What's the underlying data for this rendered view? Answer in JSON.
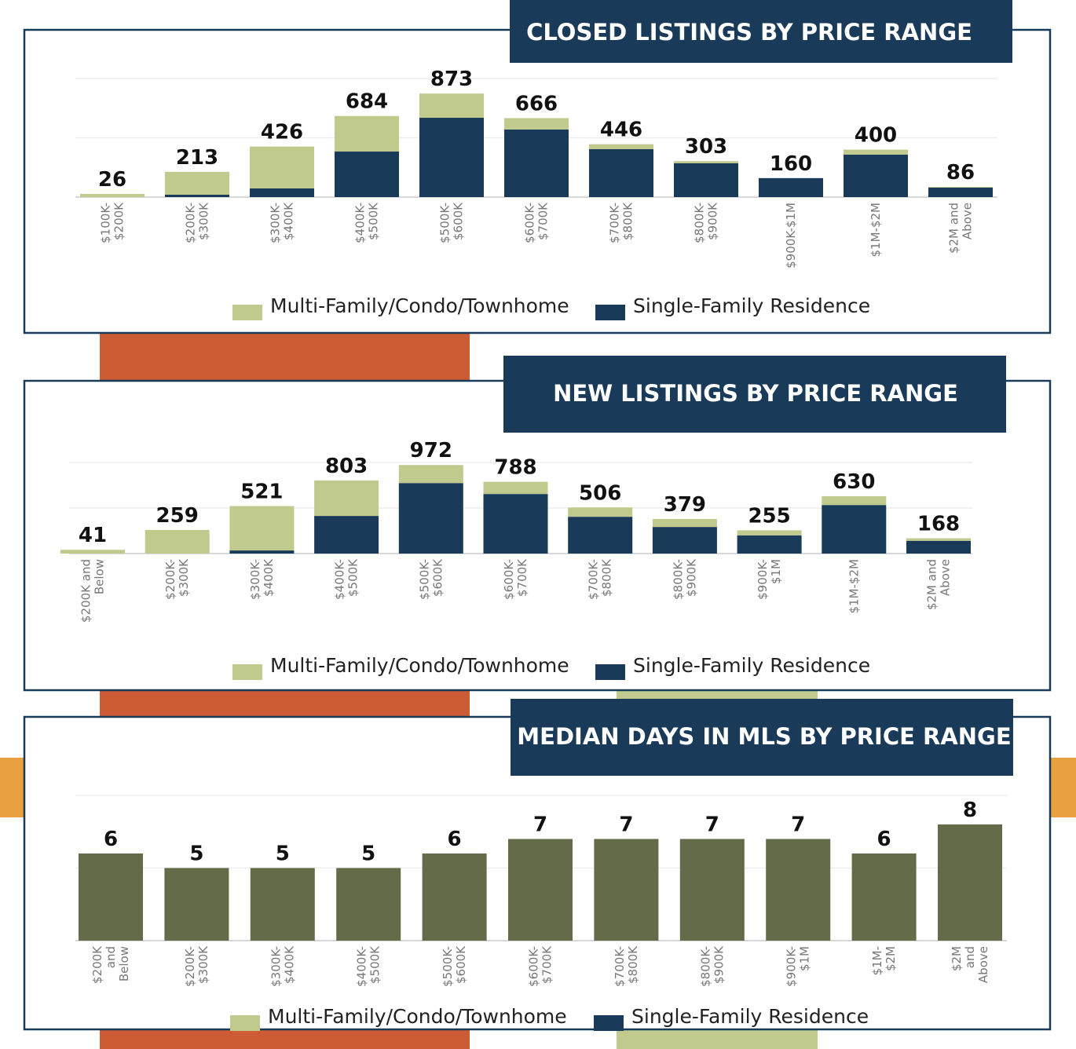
{
  "chart_data": [
    {
      "type": "stacked_bar",
      "title": "CLOSED LISTINGS BY PRICE RANGE",
      "categories": [
        "$100K-\n$200K",
        "$200K-\n$300K",
        "$300K-\n$400K",
        "$400K-\n$500K",
        "$500K-\n$600K",
        "$600K-\n$700K",
        "$700K-\n$800K",
        "$800K-\n$900K",
        "$900K-$1M",
        "$1M-$2M",
        "$2M and\nAbove"
      ],
      "series": [
        {
          "name": "Single-Family Residence",
          "color": "#1a3a5a",
          "values": [
            0,
            20,
            73,
            384,
            669,
            570,
            404,
            285,
            160,
            358,
            80
          ]
        },
        {
          "name": "Multi-Family/Condo/Townhome",
          "color": "#bfca8c",
          "values": [
            26,
            193,
            353,
            300,
            204,
            96,
            42,
            18,
            0,
            42,
            6
          ]
        }
      ],
      "totals": [
        26,
        213,
        426,
        684,
        873,
        666,
        446,
        303,
        160,
        400,
        86
      ],
      "ylim": [
        0,
        1000
      ],
      "yticks": [
        0,
        500,
        1000
      ],
      "grid": true
    },
    {
      "type": "stacked_bar",
      "title": "NEW LISTINGS BY PRICE RANGE",
      "categories": [
        "$200K and\nBelow",
        "$200K-\n$300K",
        "$300K-\n$400K",
        "$400K-\n$500K",
        "$500K-\n$600K",
        "$600K-\n$700K",
        "$700K-\n$800K",
        "$800K-\n$900K",
        "$900K-\n$1M",
        "$1M-$2M",
        "$2M and\nAbove"
      ],
      "series": [
        {
          "name": "Single-Family Residence",
          "color": "#1a3a5a",
          "values": [
            0,
            0,
            34,
            413,
            774,
            654,
            404,
            292,
            200,
            533,
            140
          ]
        },
        {
          "name": "Multi-Family/Condo/Townhome",
          "color": "#bfca8c",
          "values": [
            41,
            259,
            487,
            390,
            198,
            134,
            102,
            87,
            55,
            97,
            28
          ]
        }
      ],
      "totals": [
        41,
        259,
        521,
        803,
        972,
        788,
        506,
        379,
        255,
        630,
        168
      ],
      "ylim": [
        0,
        1000
      ],
      "yticks": [
        0,
        500,
        1000
      ],
      "grid": true
    },
    {
      "type": "bar",
      "title": "MEDIAN DAYS IN MLS BY PRICE RANGE",
      "categories": [
        "$200K\nand\nBelow",
        "$200K-\n$300K",
        "$300K-\n$400K",
        "$400K-\n$500K",
        "$500K-\n$600K",
        "$600K-\n$700K",
        "$700K-\n$800K",
        "$800K-\n$900K",
        "$900K-\n$1M",
        "$1M-\n$2M",
        "$2M\nand\nAbove"
      ],
      "values": [
        6,
        5,
        5,
        5,
        6,
        7,
        7,
        7,
        7,
        6,
        8
      ],
      "color": "#636b48",
      "legend": [
        {
          "name": "Multi-Family/Condo/Townhome",
          "color": "#bfca8c"
        },
        {
          "name": "Single-Family Residence",
          "color": "#1a3a5a"
        }
      ],
      "ylim": [
        0,
        10
      ],
      "yticks": [
        0,
        5,
        10
      ],
      "grid": true
    }
  ]
}
